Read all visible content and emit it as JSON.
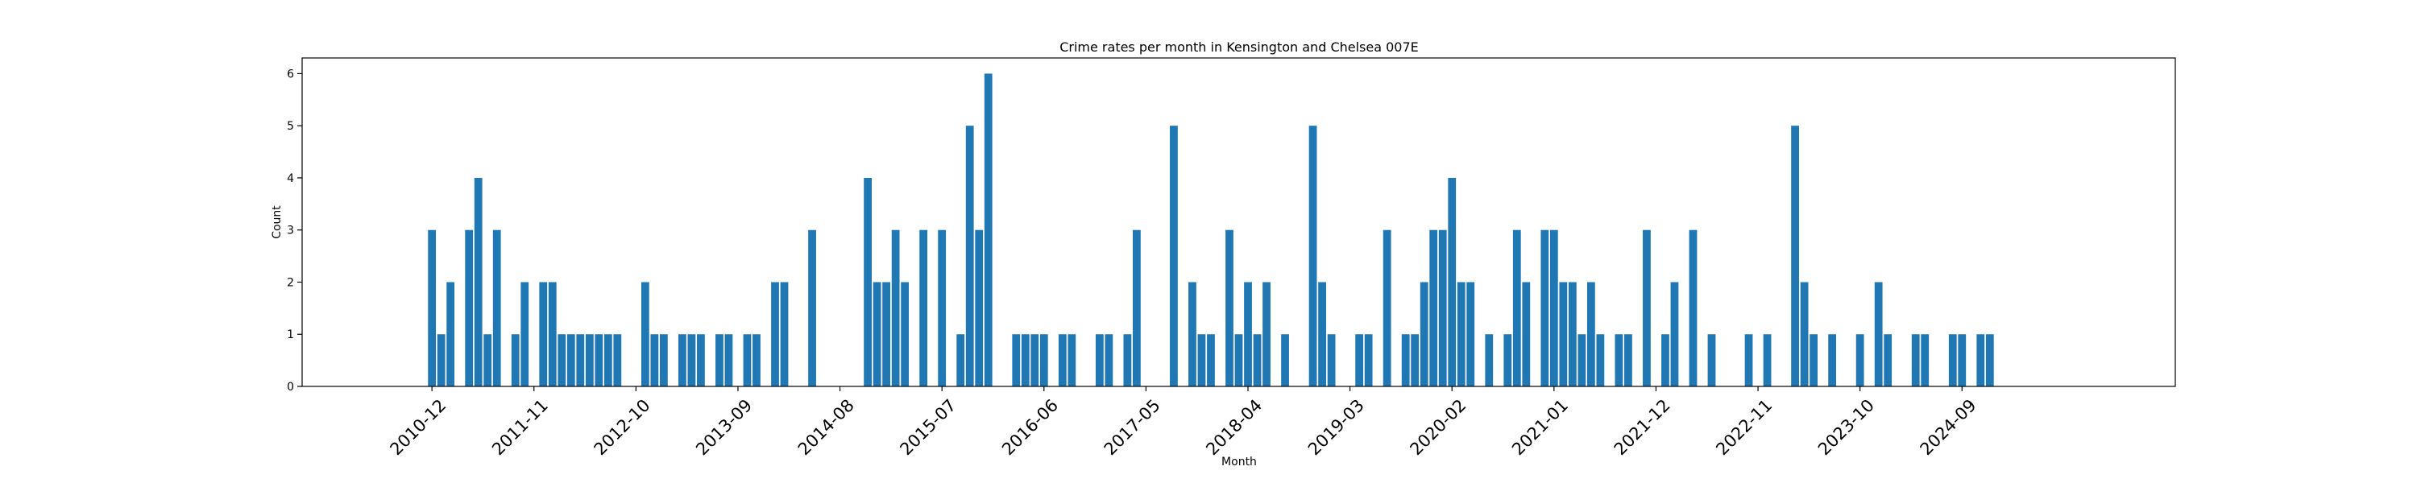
{
  "chart_data": {
    "type": "bar",
    "title": "Crime rates per month in Kensington and Chelsea 007E",
    "xlabel": "Month",
    "ylabel": "Count",
    "x_tick_labels": [
      "2010-12",
      "2011-11",
      "2012-10",
      "2013-09",
      "2014-08",
      "2015-07",
      "2016-06",
      "2017-05",
      "2018-04",
      "2019-03",
      "2020-02",
      "2021-01",
      "2021-12",
      "2022-11",
      "2023-10",
      "2024-09"
    ],
    "y_ticks": [
      0,
      1,
      2,
      3,
      4,
      5,
      6
    ],
    "ylim": [
      0,
      6.3
    ],
    "xlim": [
      "2009-10",
      "2026-08"
    ],
    "bar_color": "#1f77b4",
    "grid": false,
    "months": [
      "2010-12",
      "2011-01",
      "2011-02",
      "2011-04",
      "2011-05",
      "2011-06",
      "2011-07",
      "2011-09",
      "2011-10",
      "2011-12",
      "2012-01",
      "2012-02",
      "2012-03",
      "2012-04",
      "2012-05",
      "2012-06",
      "2012-07",
      "2012-08",
      "2012-11",
      "2012-12",
      "2013-01",
      "2013-03",
      "2013-04",
      "2013-05",
      "2013-07",
      "2013-08",
      "2013-10",
      "2013-11",
      "2014-01",
      "2014-02",
      "2014-05",
      "2014-11",
      "2014-12",
      "2015-01",
      "2015-02",
      "2015-03",
      "2015-05",
      "2015-07",
      "2015-09",
      "2015-10",
      "2015-11",
      "2015-12",
      "2016-03",
      "2016-04",
      "2016-05",
      "2016-06",
      "2016-08",
      "2016-09",
      "2016-12",
      "2017-01",
      "2017-03",
      "2017-04",
      "2017-08",
      "2017-10",
      "2017-11",
      "2017-12",
      "2018-02",
      "2018-03",
      "2018-04",
      "2018-05",
      "2018-06",
      "2018-08",
      "2018-11",
      "2018-12",
      "2019-01",
      "2019-04",
      "2019-05",
      "2019-07",
      "2019-09",
      "2019-10",
      "2019-11",
      "2019-12",
      "2020-01",
      "2020-02",
      "2020-03",
      "2020-04",
      "2020-06",
      "2020-08",
      "2020-09",
      "2020-10",
      "2020-12",
      "2021-01",
      "2021-02",
      "2021-03",
      "2021-04",
      "2021-05",
      "2021-06",
      "2021-08",
      "2021-09",
      "2021-11",
      "2022-01",
      "2022-02",
      "2022-04",
      "2022-06",
      "2022-10",
      "2022-12",
      "2023-03",
      "2023-04",
      "2023-05",
      "2023-07",
      "2023-10",
      "2023-12",
      "2024-01",
      "2024-04",
      "2024-05",
      "2024-08",
      "2024-09",
      "2024-11",
      "2024-12"
    ],
    "values": [
      3,
      1,
      2,
      3,
      4,
      1,
      3,
      1,
      2,
      2,
      2,
      1,
      1,
      1,
      1,
      1,
      1,
      1,
      2,
      1,
      1,
      1,
      1,
      1,
      1,
      1,
      1,
      1,
      2,
      2,
      3,
      4,
      2,
      2,
      3,
      2,
      3,
      3,
      1,
      5,
      3,
      6,
      1,
      1,
      1,
      1,
      1,
      1,
      1,
      1,
      1,
      3,
      5,
      2,
      1,
      1,
      3,
      1,
      2,
      1,
      2,
      1,
      5,
      2,
      1,
      1,
      1,
      3,
      1,
      1,
      2,
      3,
      3,
      4,
      2,
      2,
      1,
      1,
      3,
      2,
      3,
      3,
      2,
      2,
      1,
      2,
      1,
      1,
      1,
      3,
      1,
      2,
      3,
      1,
      1,
      1,
      5,
      2,
      1,
      1,
      1,
      2,
      1,
      1,
      1,
      1,
      1,
      1,
      1
    ]
  }
}
